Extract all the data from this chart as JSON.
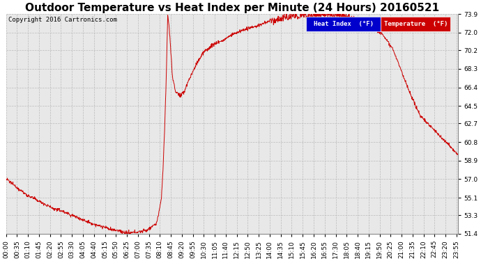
{
  "title": "Outdoor Temperature vs Heat Index per Minute (24 Hours) 20160521",
  "copyright": "Copyright 2016 Cartronics.com",
  "legend_heat_index": "Heat Index  (°F)",
  "legend_temperature": "Temperature  (°F)",
  "yticks": [
    51.4,
    53.3,
    55.1,
    57.0,
    58.9,
    60.8,
    62.7,
    64.5,
    66.4,
    68.3,
    70.2,
    72.0,
    73.9
  ],
  "xtick_labels": [
    "00:00",
    "00:35",
    "01:10",
    "01:45",
    "02:20",
    "02:55",
    "03:30",
    "04:05",
    "04:40",
    "05:15",
    "05:50",
    "06:25",
    "07:00",
    "07:35",
    "08:10",
    "08:45",
    "09:20",
    "09:55",
    "10:30",
    "11:05",
    "11:40",
    "12:15",
    "12:50",
    "13:25",
    "14:00",
    "14:35",
    "15:10",
    "15:45",
    "16:20",
    "16:55",
    "17:30",
    "18:05",
    "18:40",
    "19:15",
    "19:50",
    "20:25",
    "21:00",
    "21:35",
    "22:10",
    "22:45",
    "23:20",
    "23:55"
  ],
  "line_color": "#cc0000",
  "background_color": "#ffffff",
  "plot_bg_color": "#e8e8e8",
  "grid_color": "#bbbbbb",
  "legend_heat_bg": "#0000cc",
  "legend_temp_bg": "#cc0000",
  "title_fontsize": 11,
  "tick_fontsize": 6.5,
  "copyright_fontsize": 6.5,
  "ylim_min": 51.4,
  "ylim_max": 73.9,
  "fig_width": 6.9,
  "fig_height": 3.75,
  "fig_dpi": 100
}
